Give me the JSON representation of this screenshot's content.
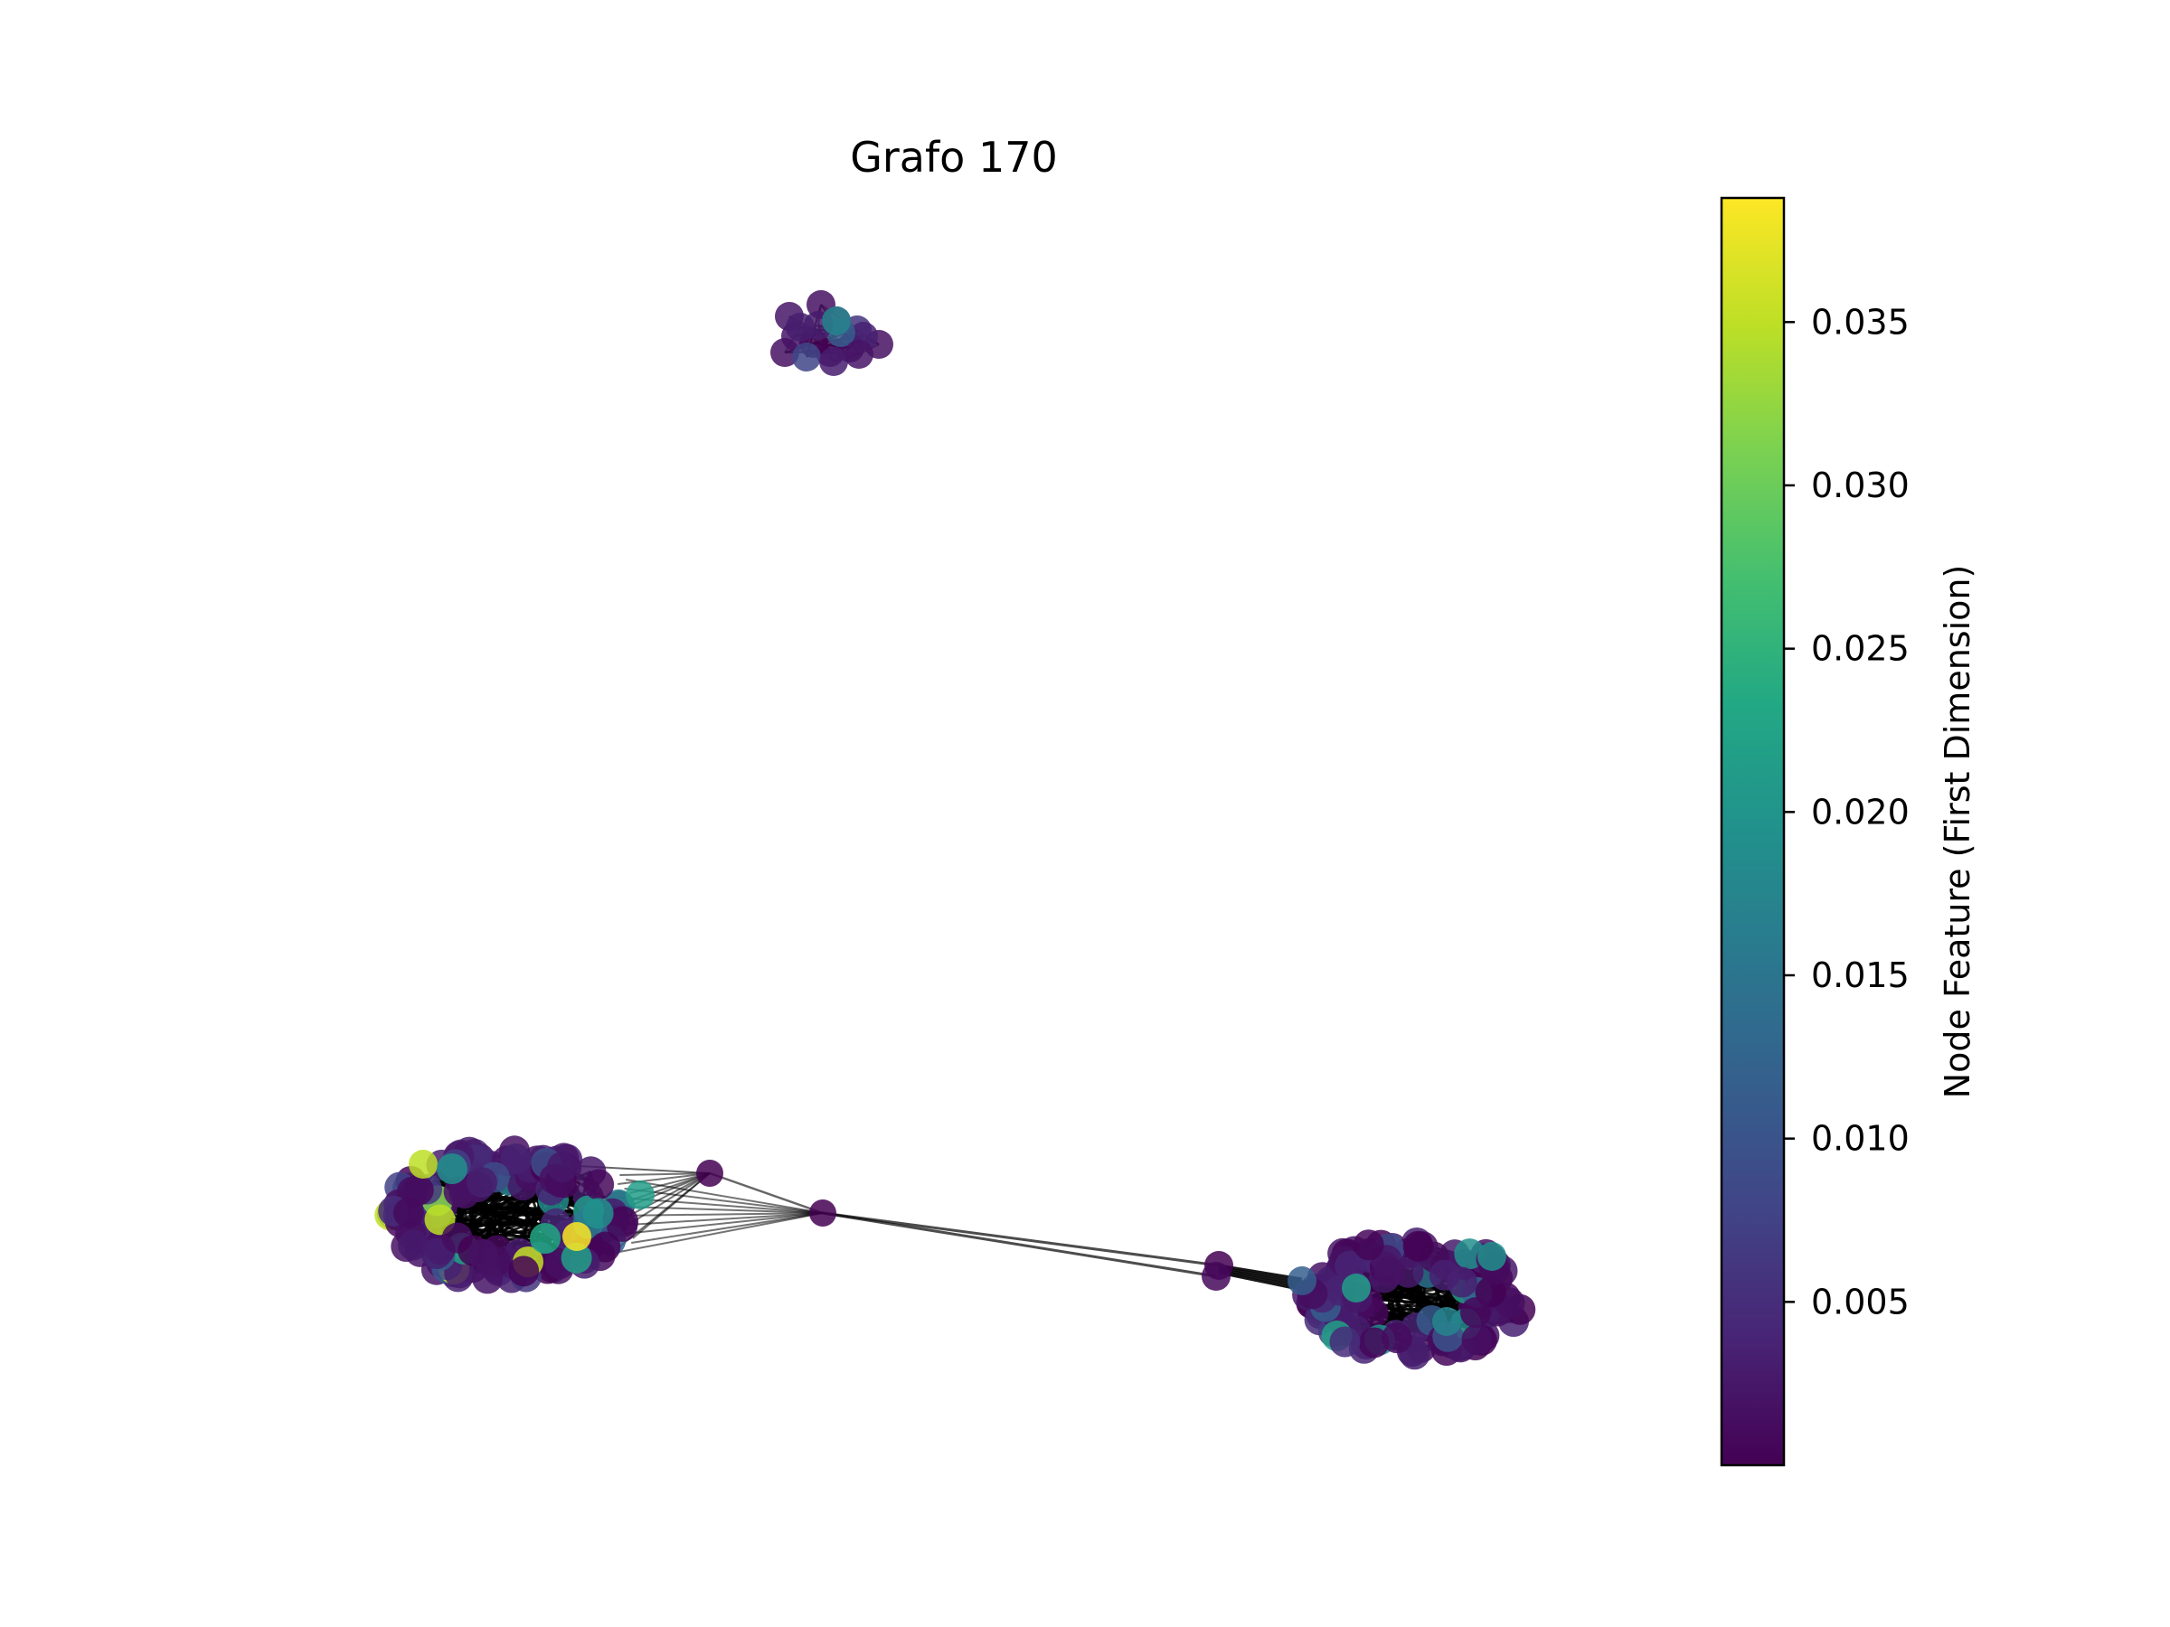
{
  "title": "Grafo 170",
  "colorbar": {
    "label": "Node Feature (First Dimension)",
    "colormap": "viridis",
    "ticks": [
      "0.005",
      "0.010",
      "0.015",
      "0.020",
      "0.025",
      "0.030",
      "0.035"
    ],
    "range": [
      0.0,
      0.0388
    ]
  },
  "colors": {
    "node_default": "#440154",
    "edge": "#000000"
  },
  "components": [
    {
      "name": "small cluster (top)",
      "node_feature_range": "0.000–0.017"
    },
    {
      "name": "left cluster",
      "node_feature_range": "0.000–0.038"
    },
    {
      "name": "right cluster",
      "node_feature_range": "0.000–0.020"
    }
  ]
}
